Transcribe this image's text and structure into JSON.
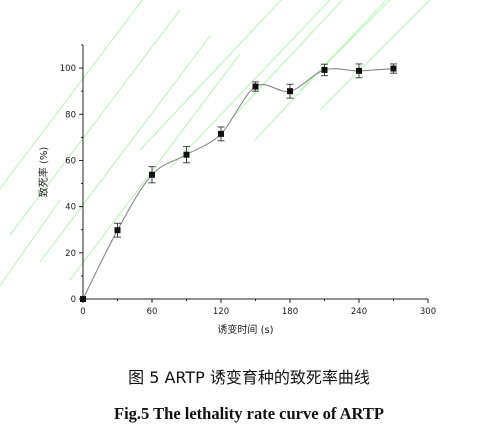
{
  "caption": {
    "cn": "图 5 ARTP 诱变育种的致死率曲线",
    "en": "Fig.5 The lethality rate curve of ARTP"
  },
  "colors": {
    "axis": "#222222",
    "line": "#888888",
    "marker": "#111111",
    "watermark": "#8cf08c"
  },
  "chart_data": {
    "type": "line",
    "title": "",
    "xlabel": "诱变时间 (s)",
    "ylabel": "致死率 (%)",
    "xlim": [
      0,
      300
    ],
    "ylim": [
      0,
      110
    ],
    "xticks": [
      0,
      60,
      120,
      180,
      240,
      300
    ],
    "yticks": [
      0,
      20,
      40,
      60,
      80,
      100
    ],
    "grid": false,
    "legend": "none",
    "series": [
      {
        "x": [
          0,
          30,
          60,
          90,
          120,
          150,
          180,
          210,
          240,
          270
        ],
        "y": [
          0,
          29.8,
          53.8,
          62.5,
          71.5,
          92,
          90,
          99.2,
          98.8,
          99.8
        ],
        "error": [
          0,
          3,
          3.5,
          3.5,
          3,
          2,
          3,
          2.5,
          3,
          2
        ]
      }
    ]
  }
}
